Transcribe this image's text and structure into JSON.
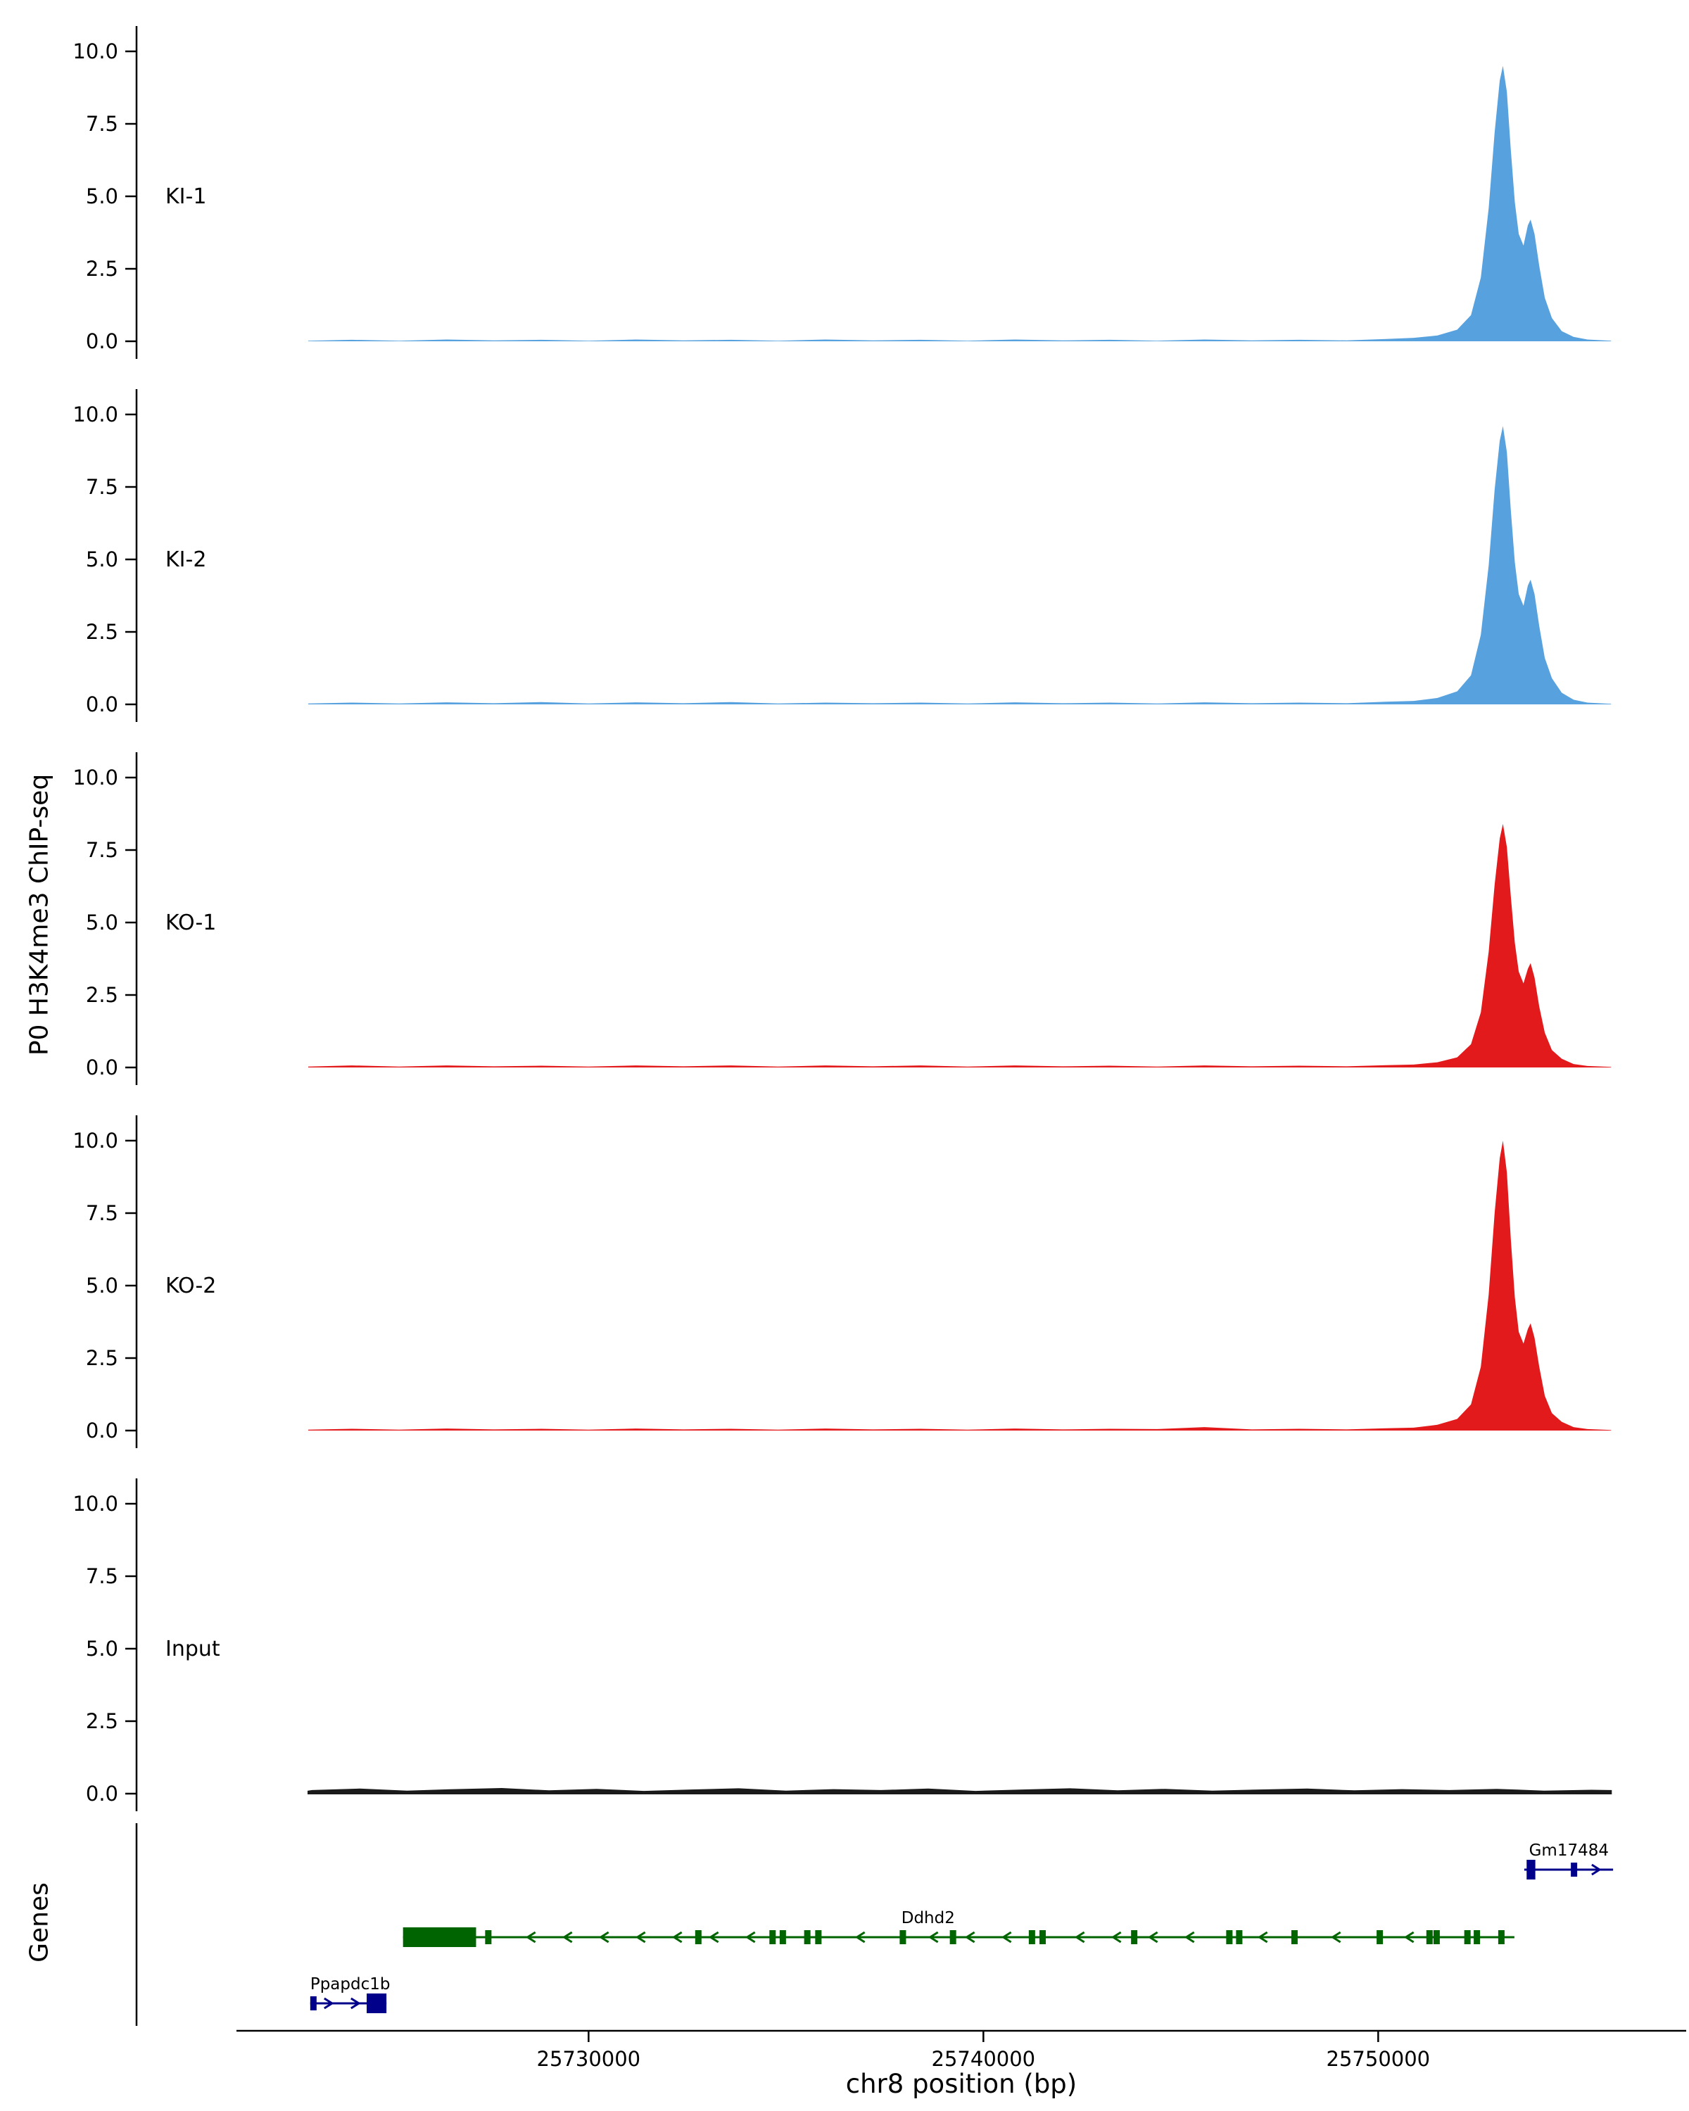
{
  "figure": {
    "y_axis_title": "P0 H3K4me3 ChIP-seq",
    "x_axis_title": "chr8 position (bp)",
    "genes_axis_title": "Genes"
  },
  "chart_data": {
    "type": "area",
    "title": "",
    "xlabel": "chr8 position (bp)",
    "ylabel": "P0 H3K4me3 ChIP-seq",
    "xlim": [
      25718550,
      25756090
    ],
    "x_ticks": [
      25730000,
      25740000,
      25750000
    ],
    "x_tick_labels": [
      "25730000",
      "25740000",
      "25750000"
    ],
    "y_ticks": [
      0.0,
      2.5,
      5.0,
      7.5,
      10.0
    ],
    "y_tick_labels": [
      "0.0",
      "2.5",
      "5.0",
      "7.5",
      "10.0"
    ],
    "ylim": [
      0,
      10.8
    ],
    "grid": false,
    "legend_position": "none",
    "tracks": [
      {
        "name": "KI-1",
        "color": "#57A1DE",
        "peak_summit": 9.5,
        "profile": [
          [
            25722900,
            0.02
          ],
          [
            25724000,
            0.05
          ],
          [
            25725200,
            0.02
          ],
          [
            25726400,
            0.06
          ],
          [
            25727600,
            0.03
          ],
          [
            25728800,
            0.05
          ],
          [
            25730000,
            0.02
          ],
          [
            25731200,
            0.06
          ],
          [
            25732400,
            0.03
          ],
          [
            25733600,
            0.05
          ],
          [
            25734800,
            0.02
          ],
          [
            25736000,
            0.06
          ],
          [
            25737200,
            0.03
          ],
          [
            25738400,
            0.05
          ],
          [
            25739600,
            0.02
          ],
          [
            25740800,
            0.06
          ],
          [
            25742000,
            0.03
          ],
          [
            25743200,
            0.05
          ],
          [
            25744400,
            0.02
          ],
          [
            25745600,
            0.06
          ],
          [
            25746800,
            0.03
          ],
          [
            25748000,
            0.05
          ],
          [
            25749200,
            0.03
          ],
          [
            25750200,
            0.08
          ],
          [
            25750900,
            0.12
          ],
          [
            25751500,
            0.2
          ],
          [
            25752000,
            0.4
          ],
          [
            25752350,
            0.9
          ],
          [
            25752600,
            2.2
          ],
          [
            25752800,
            4.6
          ],
          [
            25752950,
            7.2
          ],
          [
            25753080,
            9.0
          ],
          [
            25753160,
            9.5
          ],
          [
            25753260,
            8.6
          ],
          [
            25753360,
            6.6
          ],
          [
            25753460,
            4.8
          ],
          [
            25753560,
            3.7
          ],
          [
            25753680,
            3.3
          ],
          [
            25753790,
            4.0
          ],
          [
            25753860,
            4.2
          ],
          [
            25753960,
            3.7
          ],
          [
            25754080,
            2.6
          ],
          [
            25754220,
            1.5
          ],
          [
            25754400,
            0.8
          ],
          [
            25754650,
            0.35
          ],
          [
            25754950,
            0.15
          ],
          [
            25755300,
            0.06
          ],
          [
            25755900,
            0.02
          ]
        ]
      },
      {
        "name": "KI-2",
        "color": "#57A1DE",
        "peak_summit": 9.6,
        "profile": [
          [
            25722900,
            0.03
          ],
          [
            25724000,
            0.06
          ],
          [
            25725200,
            0.03
          ],
          [
            25726400,
            0.07
          ],
          [
            25727600,
            0.04
          ],
          [
            25728800,
            0.08
          ],
          [
            25730000,
            0.03
          ],
          [
            25731200,
            0.07
          ],
          [
            25732400,
            0.04
          ],
          [
            25733600,
            0.08
          ],
          [
            25734800,
            0.03
          ],
          [
            25736000,
            0.06
          ],
          [
            25737200,
            0.04
          ],
          [
            25738400,
            0.06
          ],
          [
            25739600,
            0.03
          ],
          [
            25740800,
            0.07
          ],
          [
            25742000,
            0.04
          ],
          [
            25743200,
            0.06
          ],
          [
            25744400,
            0.03
          ],
          [
            25745600,
            0.07
          ],
          [
            25746800,
            0.04
          ],
          [
            25748000,
            0.06
          ],
          [
            25749200,
            0.04
          ],
          [
            25750200,
            0.09
          ],
          [
            25750900,
            0.12
          ],
          [
            25751500,
            0.22
          ],
          [
            25752000,
            0.45
          ],
          [
            25752350,
            1.0
          ],
          [
            25752600,
            2.4
          ],
          [
            25752800,
            4.8
          ],
          [
            25752950,
            7.4
          ],
          [
            25753080,
            9.1
          ],
          [
            25753160,
            9.6
          ],
          [
            25753260,
            8.7
          ],
          [
            25753360,
            6.7
          ],
          [
            25753460,
            4.9
          ],
          [
            25753560,
            3.8
          ],
          [
            25753680,
            3.4
          ],
          [
            25753790,
            4.1
          ],
          [
            25753860,
            4.3
          ],
          [
            25753960,
            3.8
          ],
          [
            25754080,
            2.7
          ],
          [
            25754220,
            1.6
          ],
          [
            25754400,
            0.9
          ],
          [
            25754650,
            0.4
          ],
          [
            25754950,
            0.16
          ],
          [
            25755300,
            0.06
          ],
          [
            25755900,
            0.02
          ]
        ]
      },
      {
        "name": "KO-1",
        "color": "#E31A1C",
        "peak_summit": 8.4,
        "profile": [
          [
            25722900,
            0.03
          ],
          [
            25724000,
            0.07
          ],
          [
            25725200,
            0.03
          ],
          [
            25726400,
            0.07
          ],
          [
            25727600,
            0.04
          ],
          [
            25728800,
            0.06
          ],
          [
            25730000,
            0.03
          ],
          [
            25731200,
            0.07
          ],
          [
            25732400,
            0.04
          ],
          [
            25733600,
            0.07
          ],
          [
            25734800,
            0.03
          ],
          [
            25736000,
            0.07
          ],
          [
            25737200,
            0.04
          ],
          [
            25738400,
            0.07
          ],
          [
            25739600,
            0.03
          ],
          [
            25740800,
            0.07
          ],
          [
            25742000,
            0.04
          ],
          [
            25743200,
            0.06
          ],
          [
            25744400,
            0.03
          ],
          [
            25745600,
            0.07
          ],
          [
            25746800,
            0.04
          ],
          [
            25748000,
            0.06
          ],
          [
            25749200,
            0.04
          ],
          [
            25750200,
            0.08
          ],
          [
            25750900,
            0.1
          ],
          [
            25751500,
            0.18
          ],
          [
            25752000,
            0.35
          ],
          [
            25752350,
            0.8
          ],
          [
            25752600,
            1.9
          ],
          [
            25752800,
            4.0
          ],
          [
            25752950,
            6.3
          ],
          [
            25753080,
            7.9
          ],
          [
            25753160,
            8.4
          ],
          [
            25753260,
            7.6
          ],
          [
            25753360,
            5.9
          ],
          [
            25753460,
            4.3
          ],
          [
            25753560,
            3.3
          ],
          [
            25753680,
            2.9
          ],
          [
            25753790,
            3.4
          ],
          [
            25753860,
            3.6
          ],
          [
            25753960,
            3.1
          ],
          [
            25754080,
            2.1
          ],
          [
            25754220,
            1.2
          ],
          [
            25754400,
            0.6
          ],
          [
            25754650,
            0.3
          ],
          [
            25754950,
            0.12
          ],
          [
            25755300,
            0.05
          ],
          [
            25755900,
            0.02
          ]
        ]
      },
      {
        "name": "KO-2",
        "color": "#E31A1C",
        "peak_summit": 10.0,
        "profile": [
          [
            25722900,
            0.03
          ],
          [
            25724000,
            0.06
          ],
          [
            25725200,
            0.03
          ],
          [
            25726400,
            0.07
          ],
          [
            25727600,
            0.04
          ],
          [
            25728800,
            0.06
          ],
          [
            25730000,
            0.03
          ],
          [
            25731200,
            0.07
          ],
          [
            25732400,
            0.04
          ],
          [
            25733600,
            0.06
          ],
          [
            25734800,
            0.03
          ],
          [
            25736000,
            0.07
          ],
          [
            25737200,
            0.04
          ],
          [
            25738400,
            0.06
          ],
          [
            25739600,
            0.03
          ],
          [
            25740800,
            0.07
          ],
          [
            25742000,
            0.04
          ],
          [
            25743200,
            0.06
          ],
          [
            25744400,
            0.05
          ],
          [
            25745600,
            0.12
          ],
          [
            25746800,
            0.04
          ],
          [
            25748000,
            0.06
          ],
          [
            25749200,
            0.04
          ],
          [
            25750200,
            0.08
          ],
          [
            25750900,
            0.1
          ],
          [
            25751500,
            0.2
          ],
          [
            25752000,
            0.4
          ],
          [
            25752350,
            0.9
          ],
          [
            25752600,
            2.2
          ],
          [
            25752800,
            4.7
          ],
          [
            25752950,
            7.5
          ],
          [
            25753080,
            9.4
          ],
          [
            25753160,
            10.0
          ],
          [
            25753260,
            8.9
          ],
          [
            25753360,
            6.6
          ],
          [
            25753460,
            4.6
          ],
          [
            25753560,
            3.4
          ],
          [
            25753680,
            3.0
          ],
          [
            25753790,
            3.5
          ],
          [
            25753860,
            3.7
          ],
          [
            25753960,
            3.2
          ],
          [
            25754080,
            2.2
          ],
          [
            25754220,
            1.2
          ],
          [
            25754400,
            0.6
          ],
          [
            25754650,
            0.3
          ],
          [
            25754950,
            0.12
          ],
          [
            25755300,
            0.05
          ],
          [
            25755900,
            0.02
          ]
        ]
      },
      {
        "name": "Input",
        "color": "#1a1a1a",
        "stroke": true,
        "peak_summit": 0.17,
        "profile": [
          [
            25722900,
            0.08
          ],
          [
            25723000,
            0.1
          ],
          [
            25724200,
            0.15
          ],
          [
            25725400,
            0.08
          ],
          [
            25726600,
            0.13
          ],
          [
            25727800,
            0.17
          ],
          [
            25729000,
            0.09
          ],
          [
            25730200,
            0.14
          ],
          [
            25731400,
            0.07
          ],
          [
            25732600,
            0.12
          ],
          [
            25733800,
            0.16
          ],
          [
            25735000,
            0.08
          ],
          [
            25736200,
            0.13
          ],
          [
            25737400,
            0.1
          ],
          [
            25738600,
            0.15
          ],
          [
            25739800,
            0.07
          ],
          [
            25741000,
            0.12
          ],
          [
            25742200,
            0.16
          ],
          [
            25743400,
            0.09
          ],
          [
            25744600,
            0.14
          ],
          [
            25745800,
            0.08
          ],
          [
            25747000,
            0.12
          ],
          [
            25748200,
            0.15
          ],
          [
            25749400,
            0.09
          ],
          [
            25750600,
            0.13
          ],
          [
            25751800,
            0.1
          ],
          [
            25753000,
            0.14
          ],
          [
            25754200,
            0.08
          ],
          [
            25755400,
            0.11
          ],
          [
            25755900,
            0.1
          ]
        ]
      }
    ],
    "genes": [
      {
        "name": "Gm17484",
        "color": "#00008B",
        "strand": "+",
        "row": 0,
        "start": 25753700,
        "end": 25755950,
        "thick_blocks": [
          [
            25753760,
            25753980
          ]
        ],
        "exons": [
          [
            25754880,
            25754940
          ]
        ],
        "label": "Gm17484",
        "label_bp": 25754830,
        "label_anchor": "middle"
      },
      {
        "name": "Ddhd2",
        "color": "#006400",
        "strand": "-",
        "row": 1,
        "start": 25725300,
        "end": 25753450,
        "thick_blocks": [
          [
            25725300,
            25727150
          ]
        ],
        "exons": [
          [
            25727380,
            25727500
          ],
          [
            25732700,
            25732820
          ],
          [
            25734580,
            25734700
          ],
          [
            25734840,
            25734960
          ],
          [
            25735460,
            25735580
          ],
          [
            25735740,
            25735860
          ],
          [
            25737880,
            25737990
          ],
          [
            25739150,
            25739270
          ],
          [
            25741150,
            25741270
          ],
          [
            25741420,
            25741540
          ],
          [
            25743740,
            25743850
          ],
          [
            25746150,
            25746270
          ],
          [
            25746400,
            25746510
          ],
          [
            25747800,
            25747920
          ],
          [
            25749960,
            25750080
          ],
          [
            25751220,
            25751340
          ],
          [
            25751400,
            25751510
          ],
          [
            25752180,
            25752300
          ],
          [
            25752420,
            25752540
          ],
          [
            25753040,
            25753160
          ]
        ],
        "label": "Ddhd2",
        "label_bp": 25738600,
        "label_anchor": "middle"
      },
      {
        "name": "Ppapdc1b",
        "color": "#00008B",
        "strand": "+",
        "row": 2,
        "start": 25722950,
        "end": 25724880,
        "thick_blocks": [
          [
            25724380,
            25724880
          ]
        ],
        "exons": [
          [
            25722950,
            25723010
          ]
        ],
        "label": "Ppapdc1b",
        "label_bp": 25722950,
        "label_anchor": "start"
      }
    ]
  }
}
